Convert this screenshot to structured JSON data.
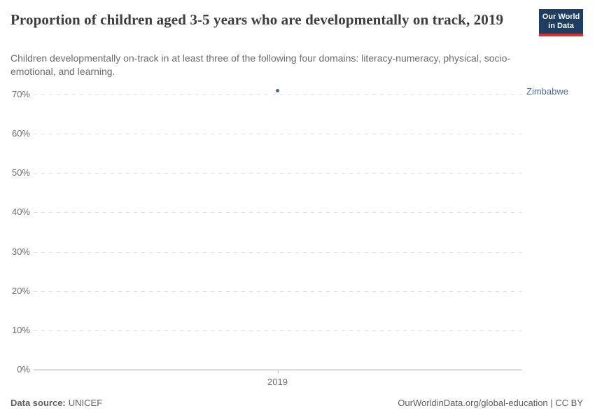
{
  "header": {
    "logo": {
      "line1": "Our World",
      "line2": "in Data",
      "background_color": "#1d3d63",
      "accent_bar_color": "#d0342c"
    }
  },
  "chart_data": {
    "type": "scatter",
    "title": "Proportion of children aged 3-5 years who are developmentally on track, 2019",
    "subtitle": "Children developmentally on-track in at least three of the following four domains: literacy-numeracy, physical, socio-emotional, and learning.",
    "x": [
      2019
    ],
    "x_tick_labels": [
      "2019"
    ],
    "y_axis": {
      "unit": "%",
      "min": 0,
      "max": 70,
      "tick_values": [
        0,
        10,
        20,
        30,
        40,
        50,
        60,
        70
      ],
      "tick_labels": [
        "0%",
        "10%",
        "20%",
        "30%",
        "40%",
        "50%",
        "60%",
        "70%"
      ]
    },
    "grid": "horizontal-dashed",
    "legend_position": "right-of-last-point",
    "series": [
      {
        "name": "Zimbabwe",
        "color": "#4c6a9c",
        "points": [
          {
            "x": 2019,
            "y": 71
          }
        ]
      }
    ],
    "colors": {
      "gridline": "#dedede",
      "axis_line": "#a3a3a3",
      "tick_label": "#6e6e6e"
    }
  },
  "footer": {
    "source_label": "Data source:",
    "source_value": "UNICEF",
    "attribution": "OurWorldinData.org/global-education | CC BY"
  }
}
